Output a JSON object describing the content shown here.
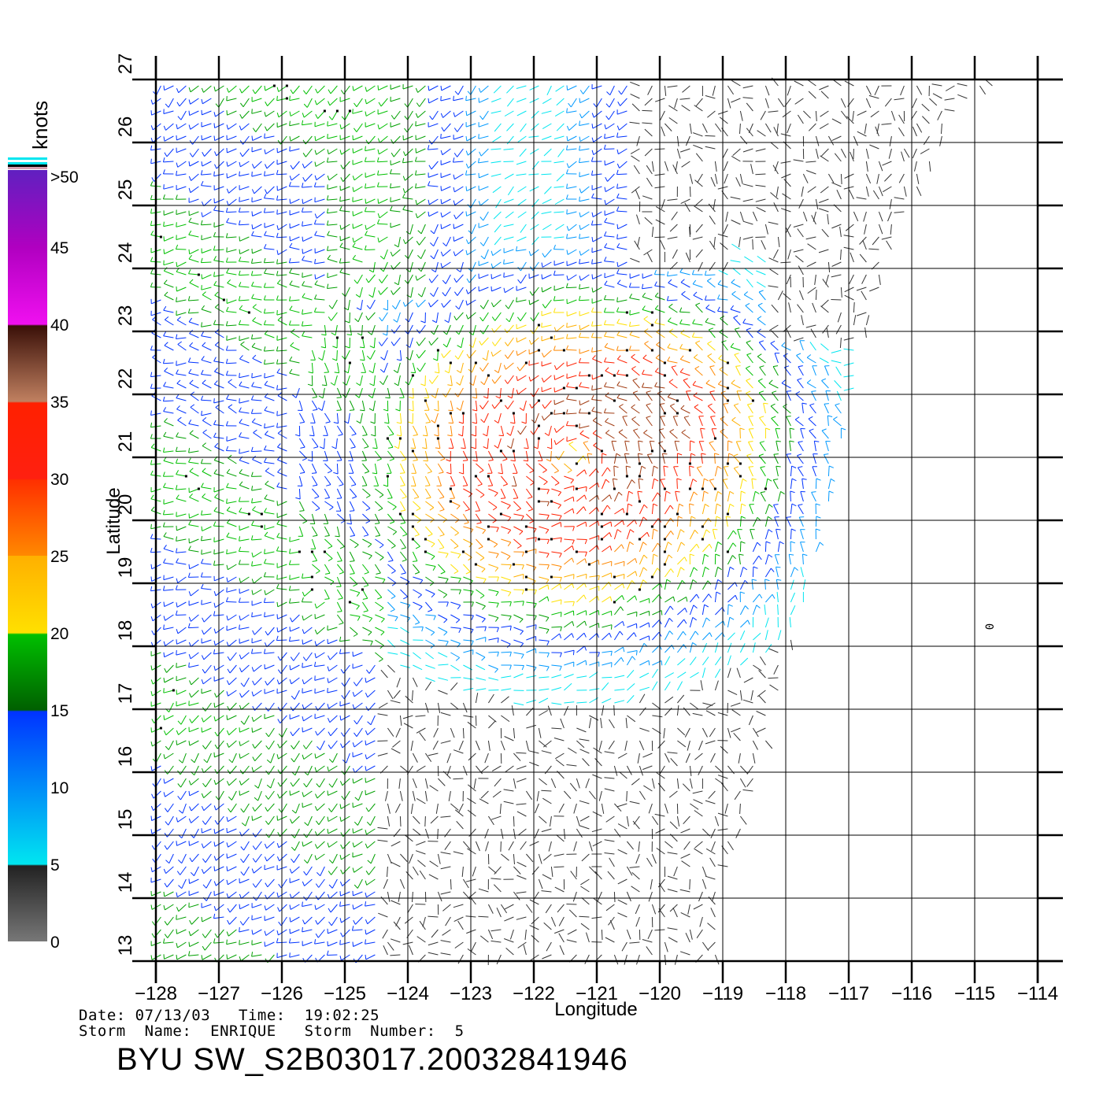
{
  "map": {
    "xlabel": "Longitude",
    "ylabel": "Latitude",
    "lon_ticks": [
      "−128",
      "−127",
      "−126",
      "−125",
      "−124",
      "−123",
      "−122",
      "−121",
      "−120",
      "−119",
      "−118",
      "−117",
      "−116",
      "−115",
      "−114"
    ],
    "lat_ticks": [
      "13",
      "14",
      "15",
      "16",
      "17",
      "18",
      "19",
      "20",
      "21",
      "22",
      "23",
      "24",
      "25",
      "26",
      "27"
    ],
    "lon_range": [
      -128,
      -114
    ],
    "lat_range": [
      13,
      27
    ],
    "grid": true,
    "zero_label": "0",
    "swath_edge": [
      [
        -128,
        13.1
      ],
      [
        -114.4,
        13.1
      ],
      [
        -114.4,
        27
      ],
      [
        -115.3,
        26.5
      ],
      [
        -116.4,
        24.1
      ],
      [
        -117.1,
        21.2
      ],
      [
        -117.6,
        19
      ],
      [
        -118,
        17.7
      ],
      [
        -118.4,
        16
      ],
      [
        -118.9,
        14.5
      ],
      [
        -119.1,
        13.1
      ]
    ]
  },
  "colorbar": {
    "unit": "knots",
    "labels": [
      ">50",
      "45",
      "40",
      "35",
      "30",
      "25",
      "20",
      "15",
      "10",
      "5",
      "0"
    ],
    "colors": {
      "gray": "#777777",
      "cyan": "#00e6f0",
      "blue": "#0033ff",
      "green": "#00c000",
      "yellow": "#ffe000",
      "orange": "#ff8800",
      "red": "#ff2000",
      "brown": "#6a2a10",
      "magenta": "#f010f0",
      "purple": "#6020c0"
    }
  },
  "footer": {
    "date_label": "Date:",
    "date": "07/13/03",
    "time_label": "Time:",
    "time": "19:02:25",
    "storm_name_label": "Storm  Name:",
    "storm_name": "ENRIQUE",
    "storm_number_label": "Storm  Number:",
    "storm_number": "5",
    "title": "BYU  SW_S2B03017.20032841946"
  }
}
